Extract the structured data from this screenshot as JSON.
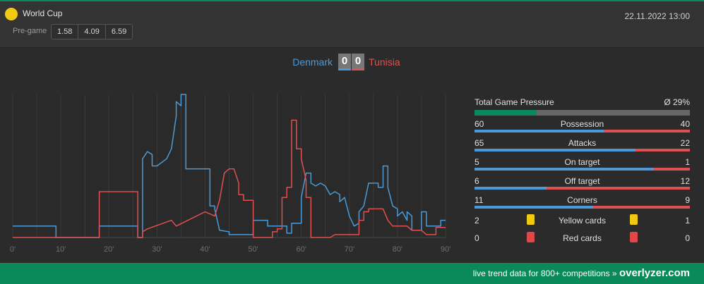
{
  "header": {
    "competition": "World Cup",
    "datetime": "22.11.2022 13:00",
    "pregame_label": "Pre-game",
    "odds": [
      "1.58",
      "4.09",
      "6.59"
    ]
  },
  "match": {
    "home": "Denmark",
    "away": "Tunisia",
    "home_score": "0",
    "away_score": "0"
  },
  "colors": {
    "home": "#4a9ad8",
    "away": "#e05050",
    "accent": "#0a8a5a",
    "yellow_card": "#f2c811",
    "red_card": "#e04848"
  },
  "chart_data": {
    "type": "line",
    "x_ticks": [
      "0'",
      "10'",
      "20'",
      "30'",
      "40'",
      "50'",
      "60'",
      "70'",
      "80'",
      "90'"
    ],
    "xlim": [
      0,
      90
    ],
    "ylim": [
      0,
      100
    ],
    "grid": true,
    "series": [
      {
        "name": "Denmark",
        "color": "#4a9ad8",
        "points": [
          [
            0,
            8
          ],
          [
            0,
            8
          ],
          [
            9,
            8
          ],
          [
            9,
            0
          ],
          [
            18,
            0
          ],
          [
            18,
            8
          ],
          [
            26,
            8
          ],
          [
            26,
            0
          ],
          [
            27,
            0
          ],
          [
            27,
            55
          ],
          [
            28,
            60
          ],
          [
            29,
            58
          ],
          [
            29,
            50
          ],
          [
            30,
            50
          ],
          [
            32,
            55
          ],
          [
            33,
            62
          ],
          [
            34,
            85
          ],
          [
            34,
            95
          ],
          [
            35,
            92
          ],
          [
            35,
            100
          ],
          [
            36,
            100
          ],
          [
            36,
            48
          ],
          [
            37,
            48
          ],
          [
            41,
            48
          ],
          [
            41,
            22
          ],
          [
            42,
            22
          ],
          [
            42,
            20
          ],
          [
            43,
            5
          ],
          [
            45,
            4
          ],
          [
            45,
            2
          ],
          [
            50,
            2
          ],
          [
            50,
            12
          ],
          [
            53,
            12
          ],
          [
            53,
            8
          ],
          [
            57,
            8
          ],
          [
            57,
            3
          ],
          [
            58,
            3
          ],
          [
            58,
            10
          ],
          [
            60,
            10
          ],
          [
            60,
            28
          ],
          [
            61,
            45
          ],
          [
            62,
            45
          ],
          [
            62,
            38
          ],
          [
            63,
            36
          ],
          [
            64,
            38
          ],
          [
            65,
            36
          ],
          [
            66,
            30
          ],
          [
            67,
            32
          ],
          [
            68,
            30
          ],
          [
            68,
            25
          ],
          [
            69,
            28
          ],
          [
            70,
            15
          ],
          [
            71,
            8
          ],
          [
            72,
            10
          ],
          [
            72,
            18
          ],
          [
            73,
            22
          ],
          [
            74,
            38
          ],
          [
            76,
            38
          ],
          [
            76,
            35
          ],
          [
            77,
            35
          ],
          [
            77,
            50
          ],
          [
            78,
            50
          ],
          [
            78,
            35
          ],
          [
            79,
            22
          ],
          [
            80,
            20
          ],
          [
            80,
            15
          ],
          [
            81,
            18
          ],
          [
            82,
            12
          ],
          [
            82,
            18
          ],
          [
            83,
            15
          ],
          [
            83,
            5
          ],
          [
            85,
            5
          ],
          [
            85,
            18
          ],
          [
            86,
            18
          ],
          [
            86,
            8
          ],
          [
            89,
            8
          ],
          [
            89,
            12
          ],
          [
            90,
            12
          ]
        ]
      },
      {
        "name": "Tunisia",
        "color": "#e05050",
        "points": [
          [
            0,
            0
          ],
          [
            9,
            0
          ],
          [
            17,
            0
          ],
          [
            18,
            0
          ],
          [
            18,
            32
          ],
          [
            26,
            32
          ],
          [
            26,
            0
          ],
          [
            27,
            0
          ],
          [
            27,
            4
          ],
          [
            28,
            6
          ],
          [
            33,
            12
          ],
          [
            34,
            8
          ],
          [
            40,
            18
          ],
          [
            42,
            15
          ],
          [
            43,
            26
          ],
          [
            44,
            45
          ],
          [
            45,
            48
          ],
          [
            46,
            48
          ],
          [
            47,
            38
          ],
          [
            47,
            30
          ],
          [
            48,
            30
          ],
          [
            48,
            26
          ],
          [
            50,
            26
          ],
          [
            50,
            0
          ],
          [
            53,
            0
          ],
          [
            54,
            0
          ],
          [
            54,
            4
          ],
          [
            55,
            4
          ],
          [
            55,
            6
          ],
          [
            56,
            6
          ],
          [
            56,
            28
          ],
          [
            57,
            28
          ],
          [
            57,
            35
          ],
          [
            58,
            35
          ],
          [
            58,
            82
          ],
          [
            59,
            82
          ],
          [
            59,
            62
          ],
          [
            60,
            62
          ],
          [
            60,
            55
          ],
          [
            61,
            40
          ],
          [
            61,
            28
          ],
          [
            62,
            28
          ],
          [
            62,
            0
          ],
          [
            66,
            0
          ],
          [
            67,
            2
          ],
          [
            71,
            2
          ],
          [
            72,
            2
          ],
          [
            72,
            12
          ],
          [
            73,
            12
          ],
          [
            73,
            18
          ],
          [
            74,
            18
          ],
          [
            74,
            20
          ],
          [
            77,
            20
          ],
          [
            78,
            12
          ],
          [
            79,
            8
          ],
          [
            82,
            8
          ],
          [
            83,
            5
          ],
          [
            84,
            5
          ],
          [
            85,
            5
          ],
          [
            86,
            2
          ],
          [
            88,
            2
          ],
          [
            88,
            7
          ],
          [
            89,
            7
          ],
          [
            90,
            7
          ]
        ]
      }
    ]
  },
  "stats": {
    "pressure_label": "Total Game Pressure",
    "pressure_value": "Ø 29%",
    "pressure_fraction": 0.29,
    "rows": [
      {
        "name": "Possession",
        "home": "60",
        "away": "40"
      },
      {
        "name": "Attacks",
        "home": "65",
        "away": "22"
      },
      {
        "name": "On target",
        "home": "5",
        "away": "1"
      },
      {
        "name": "Off target",
        "home": "6",
        "away": "12"
      },
      {
        "name": "Corners",
        "home": "11",
        "away": "9"
      }
    ],
    "cards": [
      {
        "name": "Yellow cards",
        "home": "2",
        "away": "1",
        "type": "yellow"
      },
      {
        "name": "Red cards",
        "home": "0",
        "away": "0",
        "type": "red"
      }
    ]
  },
  "footer": {
    "text": "live trend data for 800+ competitions »",
    "brand": "overlyzer.com"
  }
}
